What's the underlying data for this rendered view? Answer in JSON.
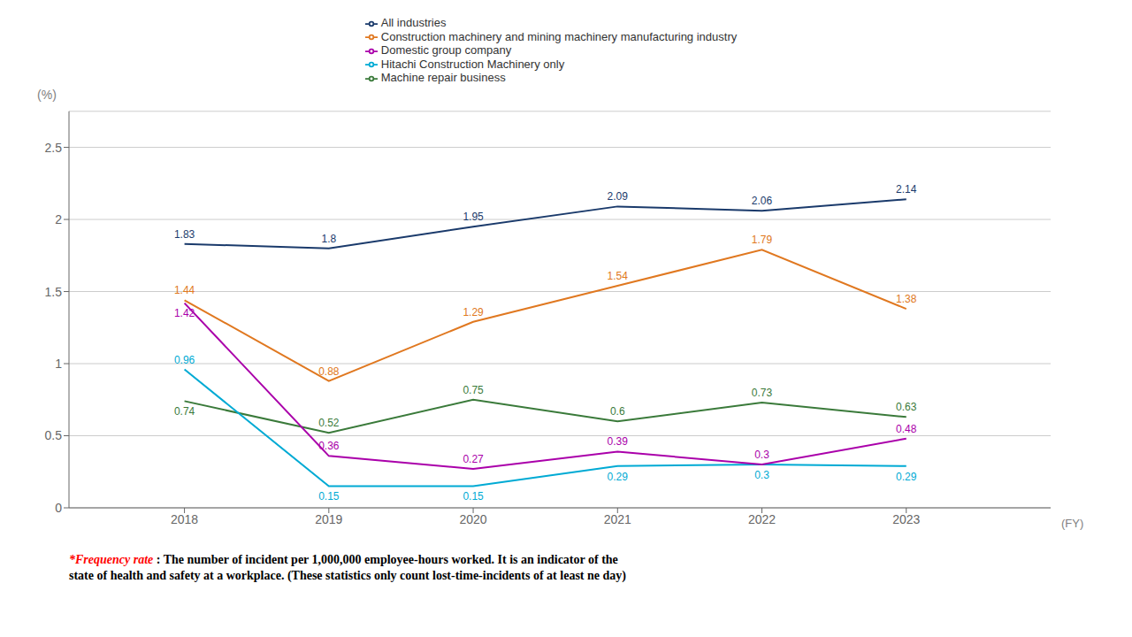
{
  "chart_data": {
    "type": "line",
    "x": [
      2018,
      2019,
      2020,
      2021,
      2022,
      2023
    ],
    "xlim": [
      2017.2,
      2024
    ],
    "xticks": [
      2018,
      2019,
      2020,
      2021,
      2022,
      2023
    ],
    "ylim": [
      0,
      2.75
    ],
    "yticks": [
      0,
      0.5,
      1,
      1.5,
      2,
      2.5
    ],
    "ylabel": "(%)",
    "xlabel": "(FY)",
    "series": [
      {
        "name": "All industries",
        "color": "#1a3a6b",
        "values": [
          1.83,
          1.8,
          1.95,
          2.09,
          2.06,
          2.14
        ]
      },
      {
        "name": "Construction machinery and mining machinery manufacturing industry",
        "color": "#e07820",
        "values": [
          1.44,
          0.88,
          1.29,
          1.54,
          1.79,
          1.38
        ]
      },
      {
        "name": "Machine repair business",
        "color": "#3a7a3a",
        "values": [
          0.74,
          0.52,
          0.75,
          0.6,
          0.73,
          0.63
        ]
      },
      {
        "name": "Hitachi Construction Machinery only",
        "color": "#00aad4",
        "values": [
          0.96,
          0.15,
          0.15,
          0.29,
          0.3,
          0.29
        ]
      },
      {
        "name": "Domestic group company",
        "color": "#aa00aa",
        "values": [
          1.42,
          0.36,
          0.27,
          0.39,
          0.3,
          0.48
        ]
      }
    ],
    "data_labels": true,
    "grid": true,
    "legend": "top",
    "annotations": [
      {
        "text": "*Frequency rate",
        "color": "red"
      },
      {
        "text": " : The number of incident per 1,000,000 employee-hours worked. It is an indicator of the\nstate of health and safety at a workplace. (These statistics only count lost-time-incidents of at least ne day)",
        "color": "black"
      }
    ]
  }
}
